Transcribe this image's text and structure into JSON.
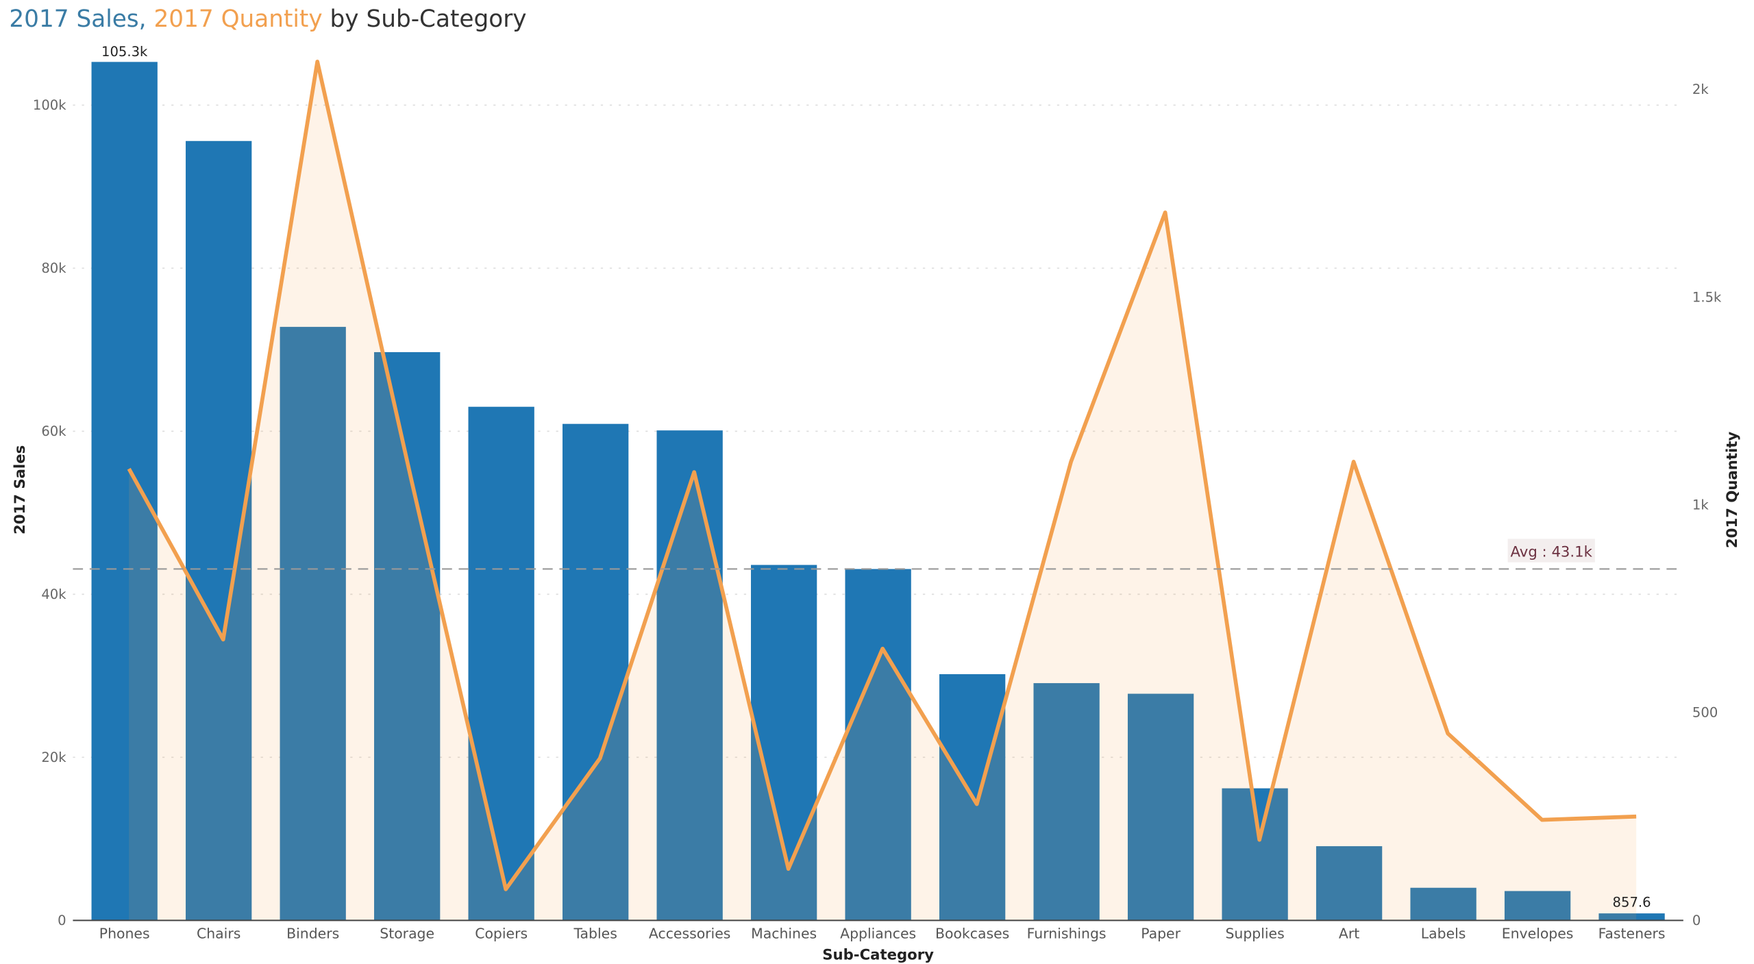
{
  "chart_data": {
    "type": "bar+area",
    "title": {
      "part1": "2017 Sales,",
      "part2": "2017 Quantity",
      "part3": "by Sub-Category"
    },
    "xlabel": "Sub-Category",
    "ylabel": "2017 Sales",
    "y2label": "2017 Quantity",
    "categories": [
      "Phones",
      "Chairs",
      "Binders",
      "Storage",
      "Copiers",
      "Tables",
      "Accessories",
      "Machines",
      "Appliances",
      "Bookcases",
      "Furnishings",
      "Paper",
      "Supplies",
      "Art",
      "Labels",
      "Envelopes",
      "Fasteners"
    ],
    "series": [
      {
        "name": "2017 Sales",
        "type": "bar",
        "axis": "left",
        "color": "#1f77b4",
        "values": [
          105300,
          95600,
          72800,
          69700,
          63000,
          60900,
          60100,
          43600,
          43100,
          30200,
          29100,
          27800,
          16200,
          9100,
          4000,
          3600,
          857.6
        ]
      },
      {
        "name": "2017 Quantity",
        "type": "area",
        "axis": "right",
        "color": "#f2a04f",
        "values": [
          1087,
          676,
          2067,
          1058,
          75,
          390,
          1079,
          124,
          654,
          280,
          1104,
          1704,
          194,
          1104,
          450,
          242,
          250
        ]
      }
    ],
    "ylim": [
      0,
      105300
    ],
    "y2lim": [
      0,
      2100
    ],
    "yticks": [
      {
        "v": 0,
        "label": "0"
      },
      {
        "v": 20000,
        "label": "20k"
      },
      {
        "v": 40000,
        "label": "40k"
      },
      {
        "v": 60000,
        "label": "60k"
      },
      {
        "v": 80000,
        "label": "80k"
      },
      {
        "v": 100000,
        "label": "100k"
      }
    ],
    "y2ticks": [
      {
        "v": 0,
        "label": "0"
      },
      {
        "v": 500,
        "label": "500"
      },
      {
        "v": 1000,
        "label": "1k"
      },
      {
        "v": 1500,
        "label": "1.5k"
      },
      {
        "v": 2000,
        "label": "2k"
      }
    ],
    "data_labels": {
      "max": "105.3k",
      "min": "857.6"
    },
    "average_line": {
      "value": 43100,
      "label": "Avg : 43.1k"
    },
    "grid": true
  }
}
